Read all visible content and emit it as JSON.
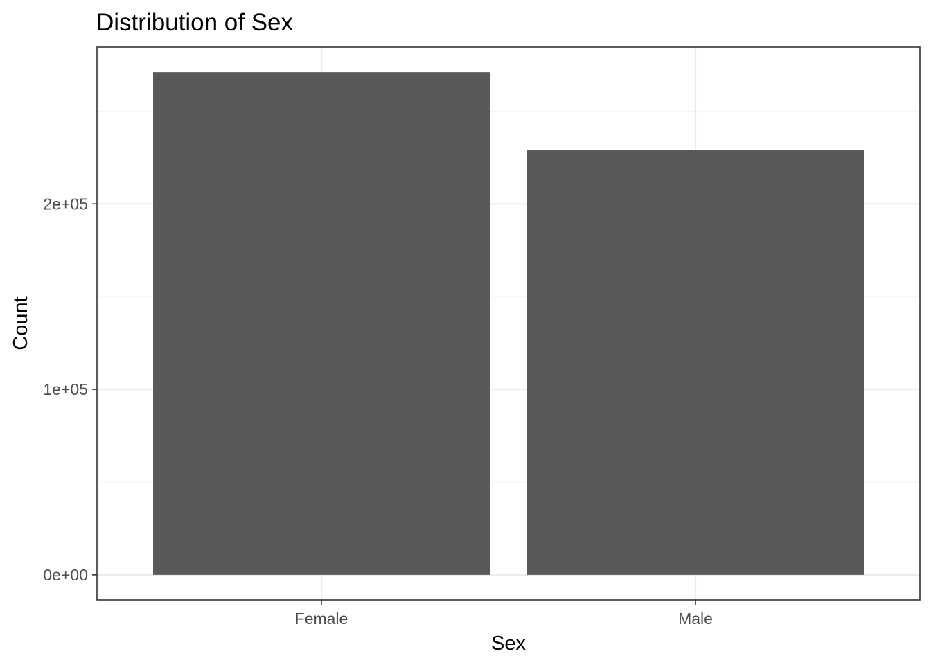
{
  "chart_data": {
    "type": "bar",
    "title": "Distribution of Sex",
    "xlabel": "Sex",
    "ylabel": "Count",
    "categories": [
      "Female",
      "Male"
    ],
    "values": [
      271000,
      229000
    ],
    "ylim": [
      -13500,
      284500
    ],
    "y_ticks": [
      0,
      100000,
      200000
    ],
    "y_tick_labels": [
      "0e+00",
      "1e+05",
      "2e+05"
    ],
    "y_minor_ticks": [
      50000,
      150000,
      250000
    ],
    "grid": true,
    "legend": "none",
    "colors": {
      "bar": "#595959",
      "panel_border": "#333333",
      "major_grid": "#ebebeb",
      "minor_grid": "#f5f5f5",
      "tick_text": "#4d4d4d"
    }
  }
}
